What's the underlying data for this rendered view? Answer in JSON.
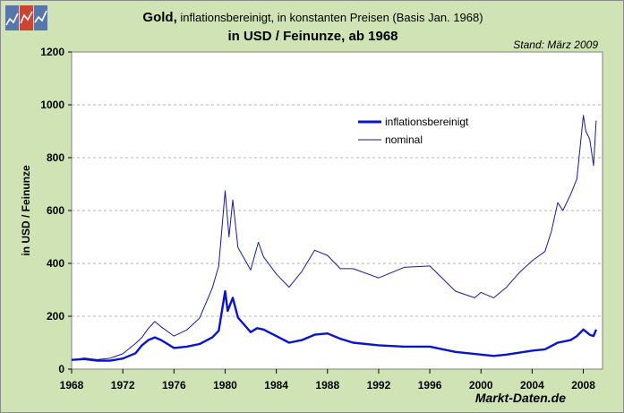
{
  "brand": {
    "logo_icon": "markt-daten-logo-icon",
    "colors": [
      "#5577aa",
      "#cc4433",
      "#5577aa"
    ]
  },
  "header": {
    "title_bold": "Gold,",
    "title_rest": "inflationsbereinigt, in konstanten Preisen (Basis Jan. 1968)",
    "subtitle": "in USD / Feinunze, ab 1968",
    "stand": "Stand: März 2009"
  },
  "footer": {
    "source": "Markt-Daten.de"
  },
  "colors": {
    "background": "#cfe3b4",
    "plot": "#ffffff",
    "series_adjusted": "#0a14c8",
    "series_nominal": "#1a1a9a",
    "grid": "#b5b5b5"
  },
  "chart_data": {
    "type": "line",
    "title": "Gold, inflationsbereinigt, in konstanten Preisen (Basis Jan. 1968)",
    "subtitle": "in USD / Feinunze, ab 1968",
    "xlabel": "",
    "ylabel": "in USD / Feinunze",
    "xlim": [
      1968,
      2009.5
    ],
    "ylim": [
      0,
      1200
    ],
    "x_ticks": [
      "1968",
      "1972",
      "1976",
      "1980",
      "1984",
      "1988",
      "1992",
      "1996",
      "2000",
      "2004",
      "2008"
    ],
    "y_ticks": [
      "0",
      "200",
      "400",
      "600",
      "800",
      "1000",
      "1200"
    ],
    "grid": true,
    "legend_position": "upper-right",
    "series": [
      {
        "name": "inflationsbereinigt",
        "x": [
          1968,
          1969,
          1970,
          1971,
          1972,
          1973,
          1973.5,
          1974,
          1974.5,
          1975,
          1976,
          1977,
          1978,
          1979,
          1979.5,
          1980.0,
          1980.2,
          1980.6,
          1981,
          1982,
          1982.5,
          1983,
          1984,
          1985,
          1986,
          1987,
          1988,
          1989,
          1990,
          1992,
          1994,
          1996,
          1998,
          2000,
          2001,
          2002,
          2004,
          2005,
          2006,
          2007,
          2007.5,
          2008,
          2008.5,
          2008.8,
          2009.0
        ],
        "values": [
          35,
          38,
          32,
          32,
          40,
          60,
          90,
          110,
          120,
          110,
          80,
          85,
          95,
          120,
          145,
          295,
          220,
          270,
          195,
          140,
          155,
          150,
          125,
          100,
          110,
          130,
          135,
          115,
          100,
          90,
          85,
          85,
          65,
          55,
          50,
          55,
          70,
          75,
          100,
          110,
          125,
          150,
          130,
          125,
          150
        ]
      },
      {
        "name": "nominal",
        "x": [
          1968,
          1969,
          1970,
          1971,
          1972,
          1973,
          1973.5,
          1974,
          1974.5,
          1975,
          1976,
          1977,
          1978,
          1979,
          1979.5,
          1980.0,
          1980.3,
          1980.6,
          1981,
          1982,
          1982.6,
          1983,
          1984,
          1985,
          1986,
          1987,
          1988,
          1989,
          1990,
          1992,
          1994,
          1996,
          1998,
          1999.5,
          2000,
          2001,
          2002,
          2003,
          2004,
          2005,
          2005.5,
          2006,
          2006.4,
          2006.8,
          2007,
          2007.5,
          2008,
          2008.2,
          2008.5,
          2008.8,
          2009.0
        ],
        "values": [
          35,
          42,
          36,
          41,
          58,
          97,
          120,
          154,
          180,
          160,
          125,
          148,
          193,
          307,
          390,
          675,
          500,
          640,
          460,
          375,
          480,
          425,
          360,
          310,
          370,
          450,
          430,
          380,
          380,
          345,
          385,
          390,
          295,
          270,
          290,
          270,
          310,
          365,
          410,
          445,
          520,
          630,
          600,
          640,
          660,
          720,
          960,
          900,
          870,
          770,
          940
        ]
      }
    ]
  }
}
